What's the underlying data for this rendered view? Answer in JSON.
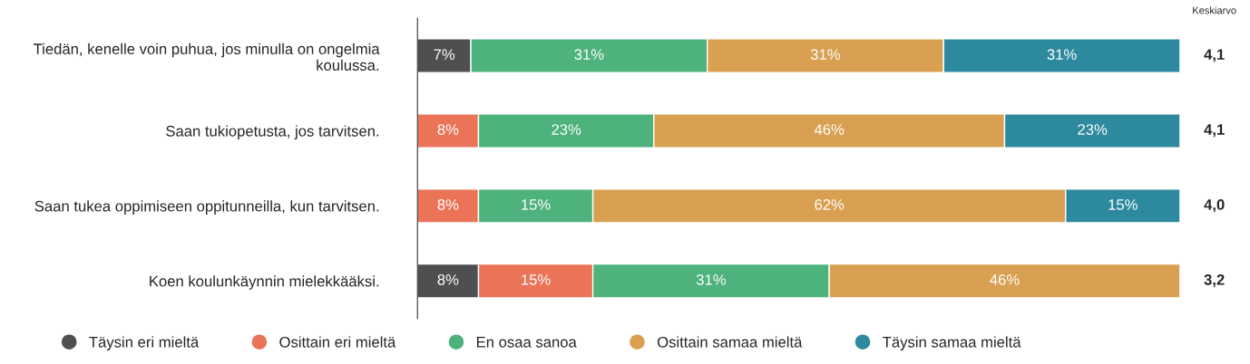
{
  "chart_data": {
    "type": "bar",
    "orientation": "horizontal",
    "stacked": true,
    "categories": [
      "Tiedän, kenelle voin puhua, jos minulla on ongelmia\nkoulussa.",
      "Saan tukiopetusta, jos tarvitsen.",
      "Saan tukea oppimiseen oppitunneilla, kun tarvitsen.",
      "Koen koulunkäynnin mielekkääksi."
    ],
    "series": [
      {
        "name": "Täysin eri mieltä",
        "color": "#4d4f51",
        "values": [
          7,
          null,
          null,
          8
        ],
        "value_labels": [
          "7%",
          null,
          null,
          "8%"
        ]
      },
      {
        "name": "Osittain eri mieltä",
        "color": "#ea7358",
        "values": [
          null,
          8,
          8,
          15
        ],
        "value_labels": [
          null,
          "8%",
          "8%",
          "15%"
        ]
      },
      {
        "name": "En osaa sanoa",
        "color": "#4db27c",
        "values": [
          31,
          23,
          15,
          31
        ],
        "value_labels": [
          "31%",
          "23%",
          "15%",
          "31%"
        ]
      },
      {
        "name": "Osittain samaa mieltä",
        "color": "#d9a052",
        "values": [
          31,
          46,
          62,
          46
        ],
        "value_labels": [
          "31%",
          "46%",
          "62%",
          "46%"
        ]
      },
      {
        "name": "Täysin samaa mieltä",
        "color": "#2d8a9e",
        "values": [
          31,
          23,
          15,
          null
        ],
        "value_labels": [
          "31%",
          "23%",
          "15%",
          null
        ]
      }
    ],
    "annotations": [
      "Keskiarvo",
      "4,1",
      "4,1",
      "4,0",
      "3,2"
    ],
    "legend": "bottom",
    "marker": "circle"
  }
}
